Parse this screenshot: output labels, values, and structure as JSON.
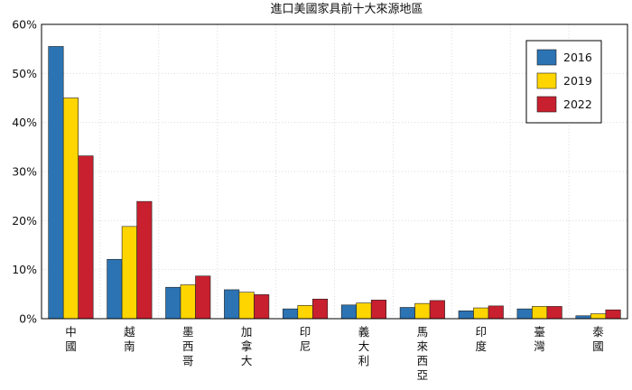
{
  "chart_data": {
    "type": "bar",
    "title": "進口美國家具前十大來源地區",
    "categories": [
      "中國",
      "越南",
      "墨西哥",
      "加拿大",
      "印尼",
      "義大利",
      "馬來西亞",
      "印度",
      "臺灣",
      "泰國"
    ],
    "series": [
      {
        "name": "2016",
        "color": "#2C73B3",
        "values": [
          55.5,
          12.1,
          6.4,
          5.9,
          2.0,
          2.8,
          2.3,
          1.6,
          2.0,
          0.6
        ]
      },
      {
        "name": "2019",
        "color": "#FFD500",
        "values": [
          45.0,
          18.8,
          6.9,
          5.4,
          2.7,
          3.2,
          3.1,
          2.2,
          2.5,
          1.0
        ]
      },
      {
        "name": "2022",
        "color": "#C8202E",
        "values": [
          33.2,
          23.9,
          8.7,
          4.9,
          4.0,
          3.8,
          3.7,
          2.6,
          2.5,
          1.8
        ]
      }
    ],
    "y_ticks": [
      "0%",
      "10%",
      "20%",
      "30%",
      "40%",
      "50%",
      "60%"
    ],
    "ylim": [
      0,
      60
    ],
    "grid": true,
    "legend_position": "top-right"
  }
}
